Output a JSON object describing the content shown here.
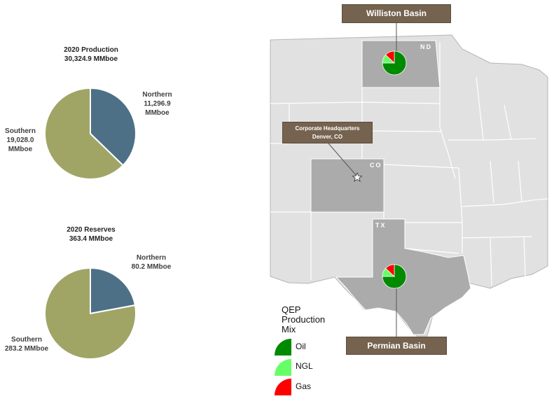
{
  "production_chart": {
    "title": "2020 Production",
    "total": "30,324.9 MMboe",
    "northern_label": "Northern",
    "northern_value": "11,296.9",
    "northern_unit": "MMboe",
    "southern_label": "Southern",
    "southern_value": "19,028.0",
    "southern_unit": "MMboe"
  },
  "reserves_chart": {
    "title": "2020 Reserves",
    "total": "363.4 MMboe",
    "northern_label": "Northern",
    "northern_value": "80.2 MMboe",
    "southern_label": "Southern",
    "southern_value": "283.2 MMboe"
  },
  "chart_data": [
    {
      "type": "pie",
      "title": "2020 Production 30,324.9 MMboe",
      "categories": [
        "Northern",
        "Southern"
      ],
      "values": [
        11296.9,
        19028.0
      ],
      "colors": [
        "#4d7087",
        "#a0a566"
      ]
    },
    {
      "type": "pie",
      "title": "2020 Reserves 363.4 MMboe",
      "categories": [
        "Northern",
        "Southern"
      ],
      "values": [
        80.2,
        283.2
      ],
      "colors": [
        "#4d7087",
        "#a0a566"
      ]
    }
  ],
  "map": {
    "williston_label": "Williston Basin",
    "permian_label": "Permian Basin",
    "hq_line1": "Corporate Headquarters",
    "hq_line2": "Denver, CO",
    "state_nd": "ND",
    "state_co": "CO",
    "state_tx": "TX",
    "mix_values": [
      75,
      12,
      13
    ]
  },
  "legend": {
    "title_line1": "QEP",
    "title_line2": "Production",
    "title_line3": "Mix",
    "oil": "Oil",
    "ngl": "NGL",
    "gas": "Gas"
  },
  "colors": {
    "northern": "#4d7087",
    "southern": "#a0a566",
    "oil": "#008a00",
    "ngl": "#66ff66",
    "gas": "#ff0000",
    "callout": "#75634f",
    "highlight_state": "#ababab",
    "base_state": "#e1e1e1"
  }
}
